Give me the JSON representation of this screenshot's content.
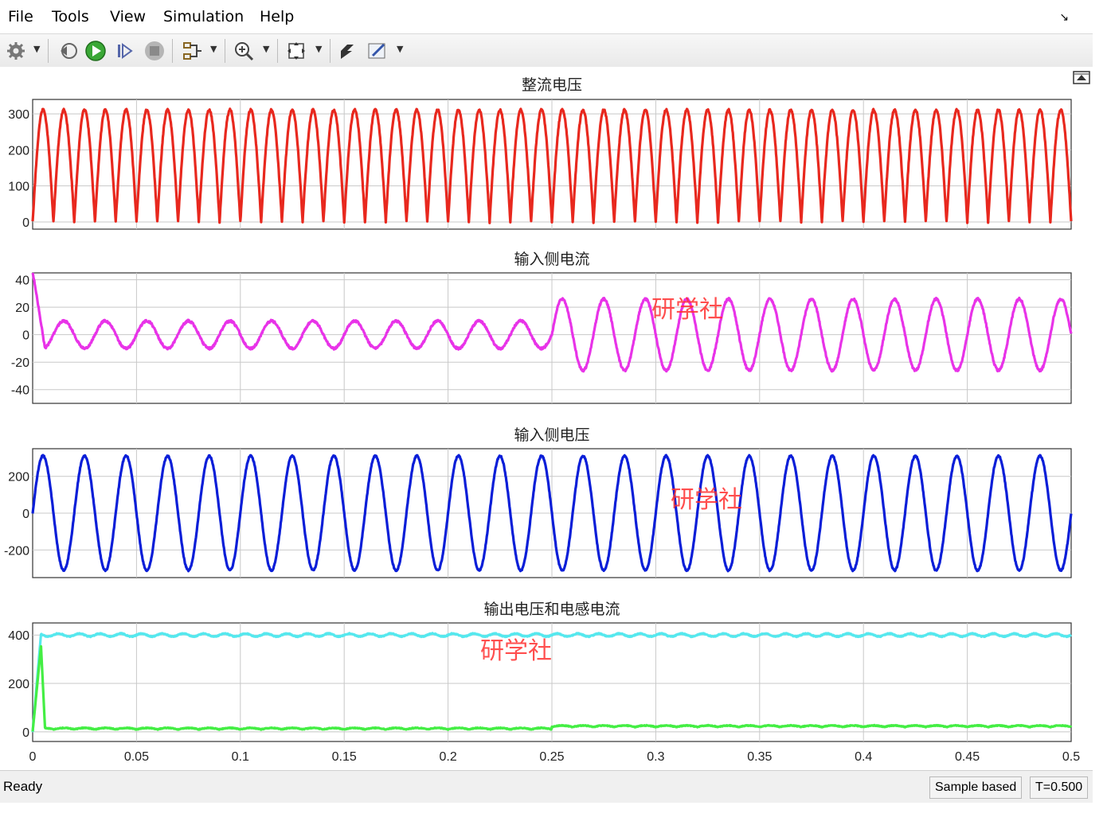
{
  "menu": {
    "items": [
      "File",
      "Tools",
      "View",
      "Simulation",
      "Help"
    ]
  },
  "toolbar": {
    "icons": [
      "gear-icon",
      "step-back-icon",
      "run-icon",
      "step-forward-icon",
      "stop-icon",
      "signal-select-icon",
      "zoom-icon",
      "fit-to-view-icon",
      "cursor-icon",
      "edit-icon"
    ]
  },
  "status": {
    "left": "Ready",
    "mode": "Sample based",
    "time": "T=0.500"
  },
  "watermark": "研学社",
  "colors": {
    "rectified": "#e8281e",
    "input_current": "#e833e8",
    "input_voltage": "#0a1ed8",
    "output_voltage": "#55e8ee",
    "inductor_current": "#44ee44",
    "grid": "#c8c8c8"
  },
  "chart_data": [
    {
      "type": "line",
      "title": "整流电压",
      "x_range": [
        0,
        0.5
      ],
      "ylim": [
        -20,
        340
      ],
      "yticks": [
        0,
        100,
        200,
        300
      ],
      "grid": true,
      "series": [
        {
          "color": "#e8281e",
          "waveform": "rectified_sine",
          "frequency_hz": 50,
          "amplitude": 311
        }
      ]
    },
    {
      "type": "line",
      "title": "输入侧电流",
      "x_range": [
        0,
        0.5
      ],
      "ylim": [
        -50,
        45
      ],
      "yticks": [
        -40,
        -20,
        0,
        20,
        40
      ],
      "grid": true,
      "series": [
        {
          "color": "#e833e8",
          "waveform": "sine",
          "frequency_hz": 50,
          "amplitude_before_0_25": 10,
          "amplitude_after_0_25": 26,
          "startup_spike": 45
        }
      ]
    },
    {
      "type": "line",
      "title": "输入侧电压",
      "x_range": [
        0,
        0.5
      ],
      "ylim": [
        -350,
        350
      ],
      "yticks": [
        -200,
        0,
        200
      ],
      "grid": true,
      "series": [
        {
          "color": "#0a1ed8",
          "waveform": "sine",
          "frequency_hz": 50,
          "amplitude": 311
        }
      ]
    },
    {
      "type": "line",
      "title": "输出电压和电感电流",
      "x_range": [
        0,
        0.5
      ],
      "xticks": [
        "0",
        "0.05",
        "0.1",
        "0.15",
        "0.2",
        "0.25",
        "0.3",
        "0.35",
        "0.4",
        "0.45",
        "0.5"
      ],
      "ylim": [
        -40,
        450
      ],
      "yticks": [
        0,
        200,
        400
      ],
      "grid": true,
      "series": [
        {
          "color": "#55e8ee",
          "waveform": "dc_ripple",
          "level": 400
        },
        {
          "color": "#44ee44",
          "waveform": "ripple_100hz",
          "level_before_0_25": 10,
          "level_after_0_25": 20
        }
      ]
    }
  ]
}
